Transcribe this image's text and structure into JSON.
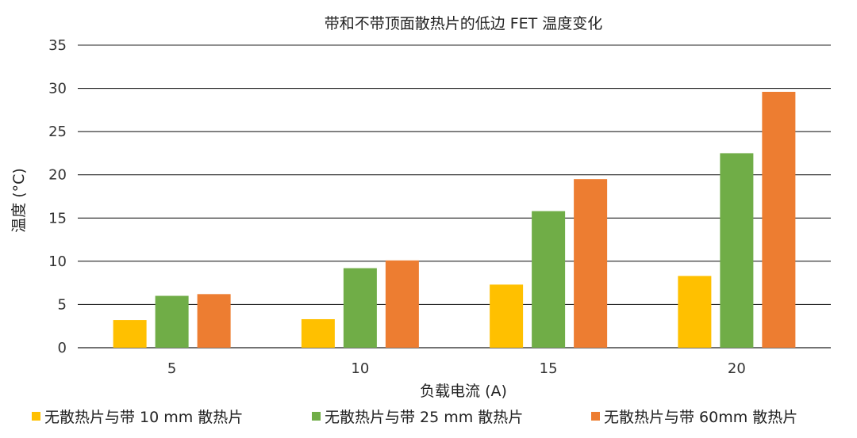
{
  "chart_data": {
    "type": "bar",
    "title": "带和不带顶面散热片的低边 FET 温度变化",
    "xlabel": "负载电流 (A)",
    "ylabel": "温度 (°C)",
    "categories": [
      "5",
      "10",
      "15",
      "20"
    ],
    "ylim": [
      0,
      35
    ],
    "yticks": [
      "0",
      "5",
      "10",
      "15",
      "20",
      "25",
      "30",
      "35"
    ],
    "grid": true,
    "legend_position": "bottom",
    "series": [
      {
        "name": "无散热片与带 10 mm 散热片",
        "color": "#FFC000",
        "values": [
          3.2,
          3.3,
          7.3,
          8.3
        ]
      },
      {
        "name": "无散热片与带 25 mm 散热片",
        "color": "#70AD47",
        "values": [
          6.0,
          9.2,
          15.8,
          22.5
        ]
      },
      {
        "name": "无散热片与带 60mm 散热片",
        "color": "#ED7D31",
        "values": [
          6.2,
          10.1,
          19.5,
          29.6
        ]
      }
    ]
  }
}
